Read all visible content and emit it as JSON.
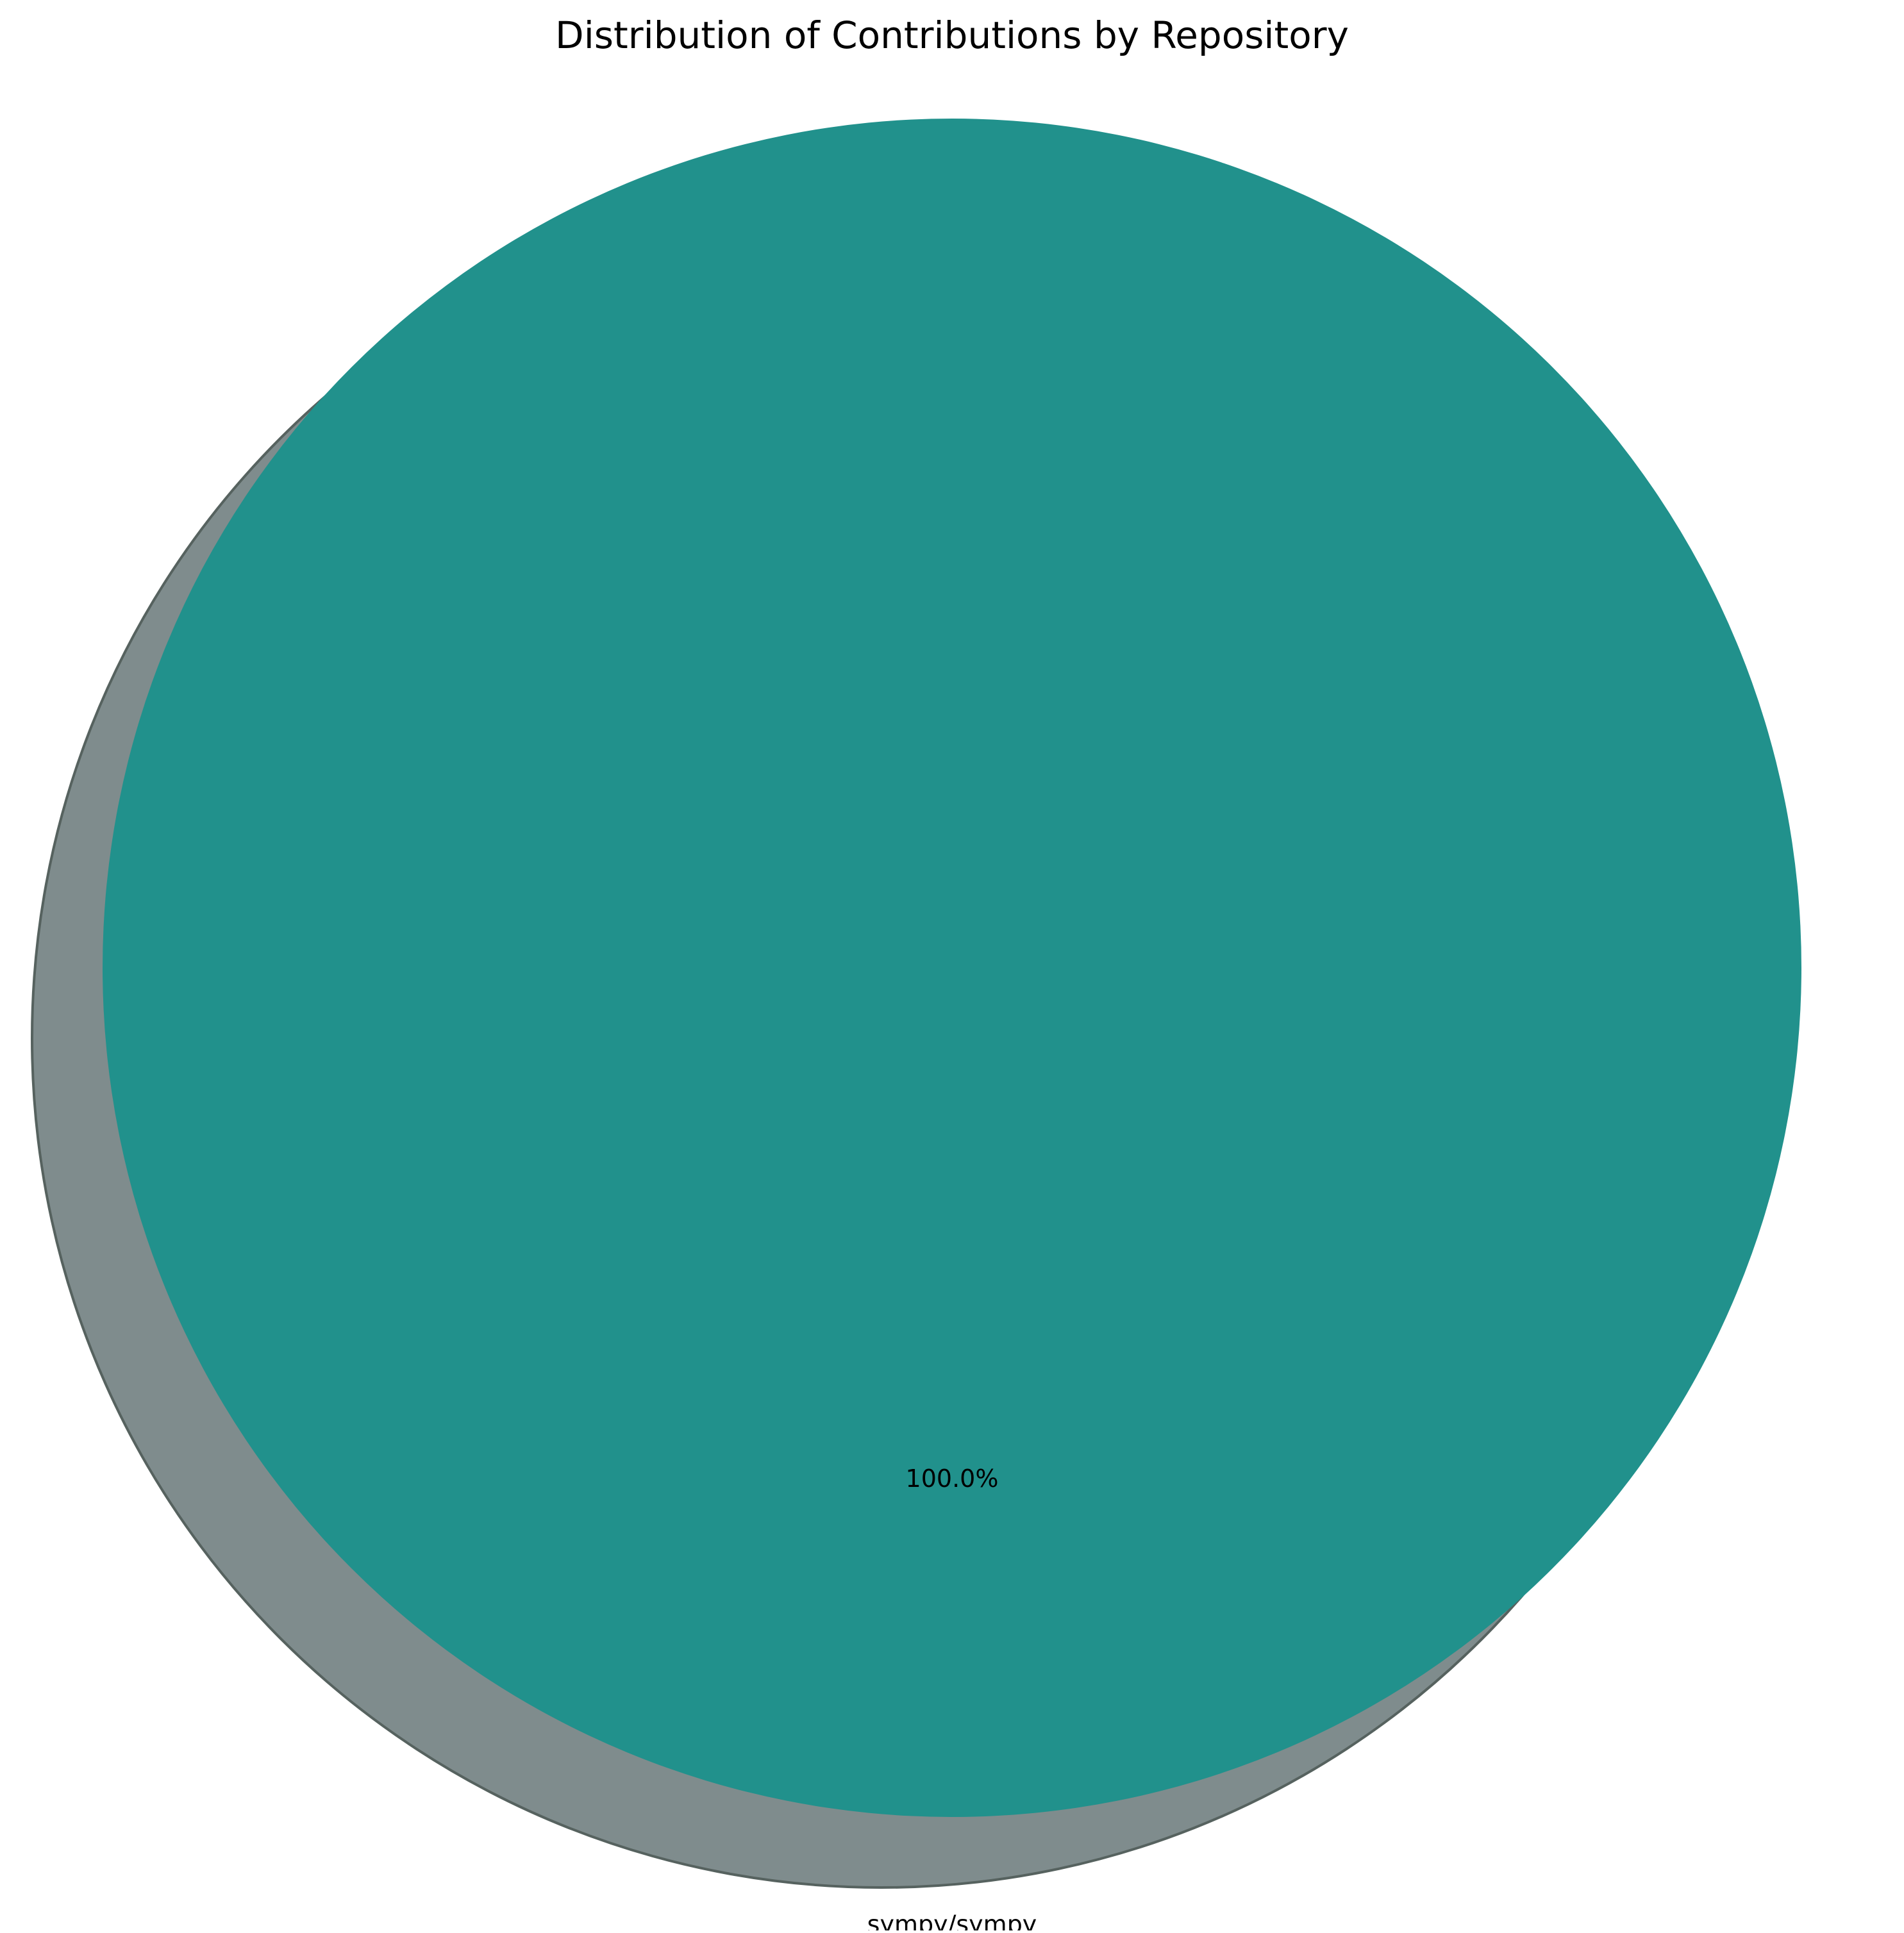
{
  "chart_data": {
    "type": "pie",
    "title": "Distribution of Contributions by Repository",
    "slices": [
      {
        "label": "sympy/sympy",
        "value": 100.0,
        "percent_label": "100.0%",
        "color": "#21918c"
      }
    ],
    "shadow": true,
    "shadow_color": "#7f8c8d",
    "legend": "none"
  }
}
